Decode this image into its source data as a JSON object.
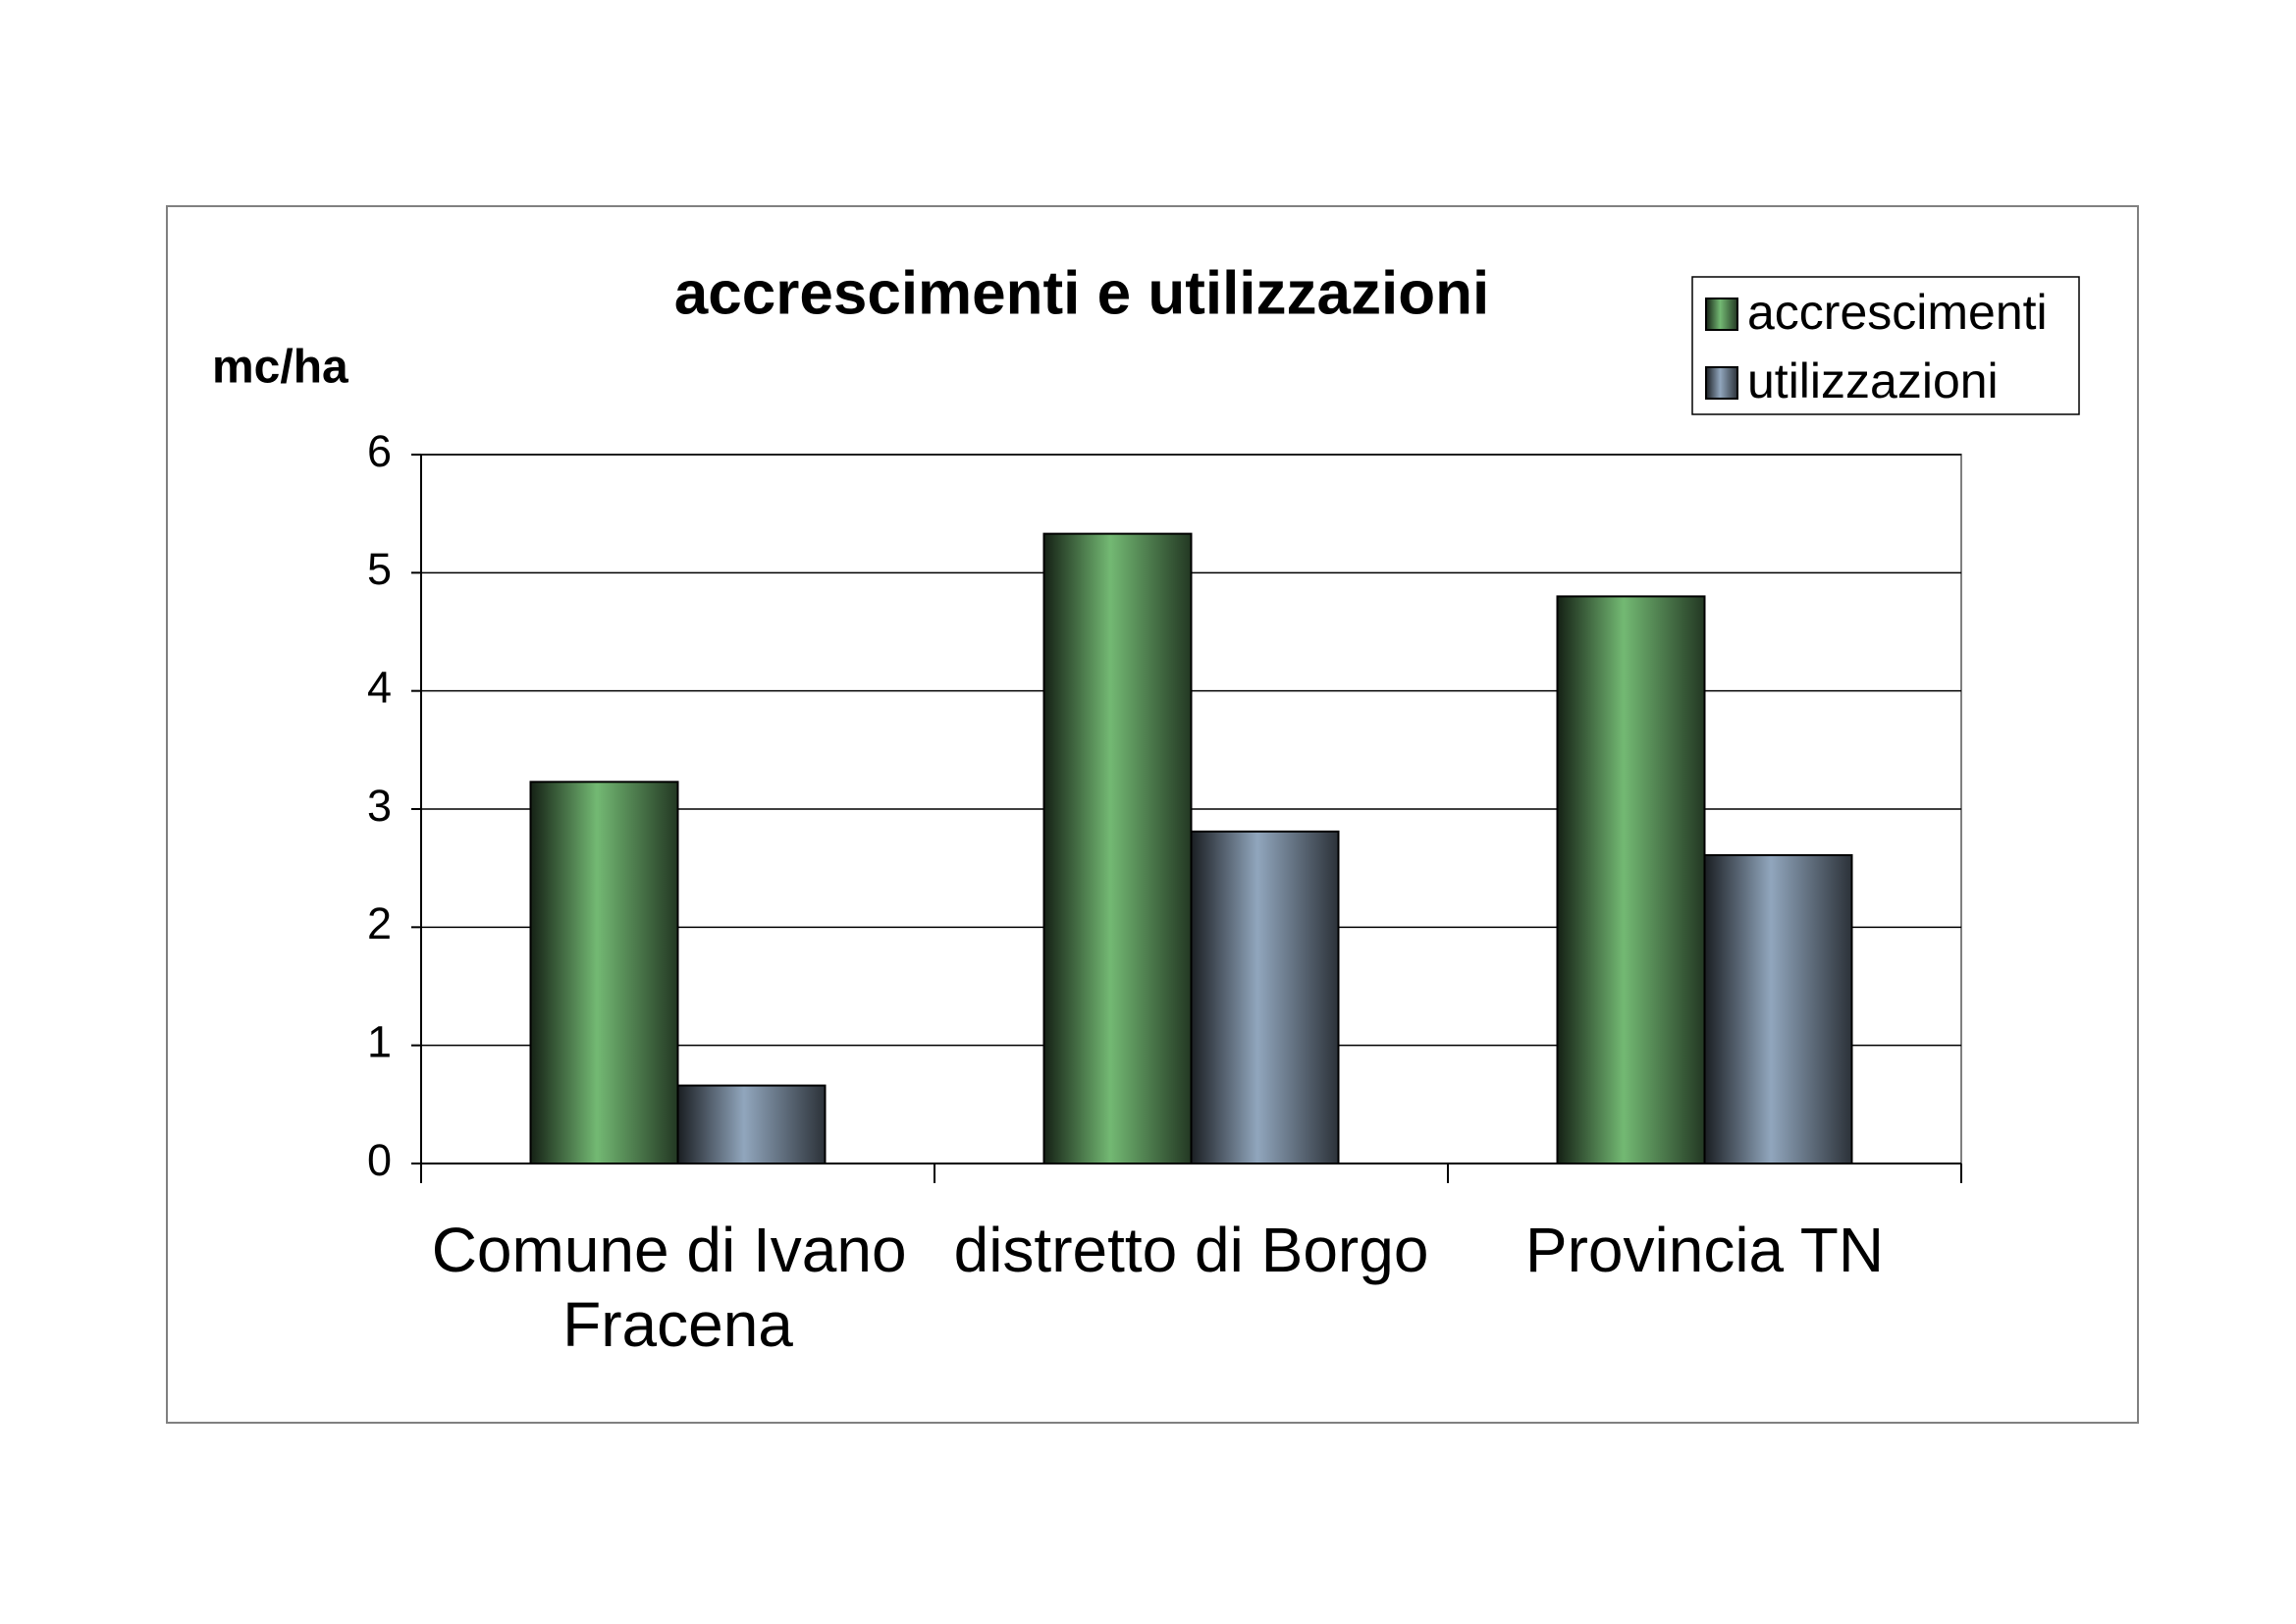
{
  "chart_data": {
    "type": "bar",
    "title": "accrescimenti e utilizzazioni",
    "y_label": "mc/ha",
    "categories": [
      "Comune di Ivano Fracena",
      "distretto di Borgo",
      "Provincia TN"
    ],
    "series": [
      {
        "name": "accrescimenti",
        "color": "#73b973",
        "values": [
          3.23,
          5.33,
          4.8
        ]
      },
      {
        "name": "utilizzazioni",
        "color": "#91a6bd",
        "values": [
          0.66,
          2.81,
          2.61
        ]
      }
    ],
    "ylim": [
      0,
      6
    ],
    "yticks": [
      0,
      1,
      2,
      3,
      4,
      5,
      6
    ],
    "grid": true,
    "legend": "top-right"
  }
}
